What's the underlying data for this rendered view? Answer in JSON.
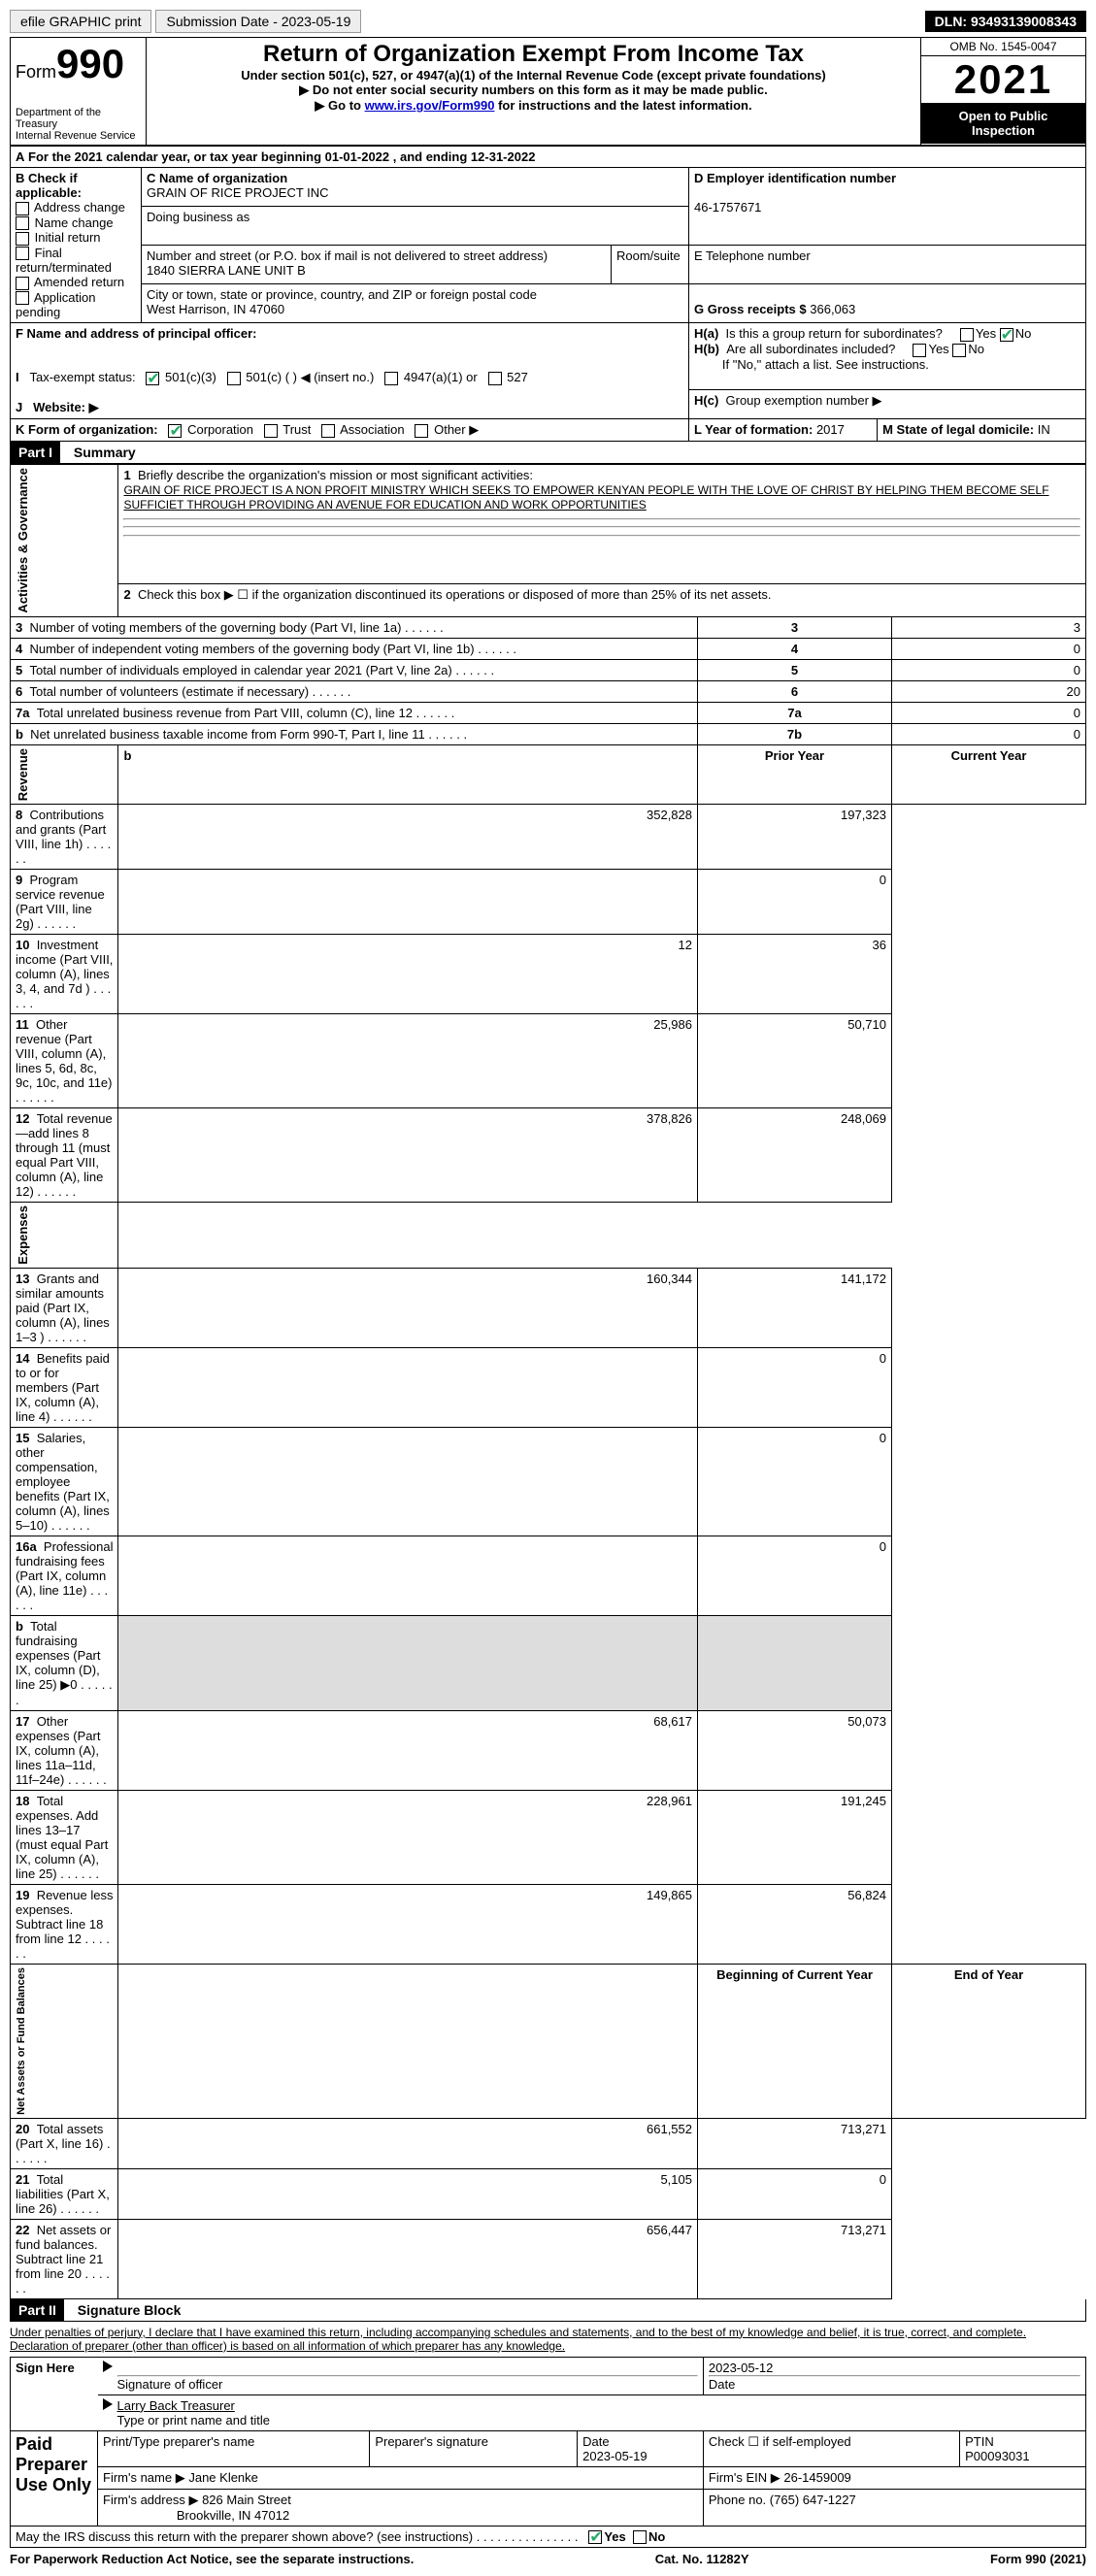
{
  "toolbar": {
    "efile": "efile GRAPHIC print",
    "submission": "Submission Date - 2023-05-19",
    "dln": "DLN: 93493139008343"
  },
  "header": {
    "form_word": "Form",
    "form_num": "990",
    "dept": "Department of the Treasury",
    "irs": "Internal Revenue Service",
    "title": "Return of Organization Exempt From Income Tax",
    "sub1": "Under section 501(c), 527, or 4947(a)(1) of the Internal Revenue Code (except private foundations)",
    "sub2": "▶ Do not enter social security numbers on this form as it may be made public.",
    "sub3_pre": "▶ Go to ",
    "sub3_link": "www.irs.gov/Form990",
    "sub3_post": " for instructions and the latest information.",
    "omb": "OMB No. 1545-0047",
    "year": "2021",
    "open": "Open to Public Inspection"
  },
  "A": {
    "text_pre": "For the 2021 calendar year, or tax year beginning ",
    "begin": "01-01-2022",
    "mid": " , and ending ",
    "end": "12-31-2022"
  },
  "B": {
    "label": "B Check if applicable:",
    "items": [
      "Address change",
      "Name change",
      "Initial return",
      "Final return/terminated",
      "Amended return",
      "Application pending"
    ]
  },
  "C": {
    "name_lbl": "C Name of organization",
    "name": "GRAIN OF RICE PROJECT INC",
    "dba_lbl": "Doing business as",
    "street_lbl": "Number and street (or P.O. box if mail is not delivered to street address)",
    "room_lbl": "Room/suite",
    "street": "1840 SIERRA LANE UNIT B",
    "city_lbl": "City or town, state or province, country, and ZIP or foreign postal code",
    "city": "West Harrison, IN  47060"
  },
  "D": {
    "lbl": "D Employer identification number",
    "val": "46-1757671"
  },
  "E": {
    "lbl": "E Telephone number"
  },
  "G": {
    "lbl": "G Gross receipts $",
    "val": "366,063"
  },
  "F": {
    "lbl": "F Name and address of principal officer:"
  },
  "H": {
    "a": "Is this a group return for subordinates?",
    "b": "Are all subordinates included?",
    "b_note": "If \"No,\" attach a list. See instructions.",
    "c": "Group exemption number ▶",
    "yes": "Yes",
    "no": "No"
  },
  "I": {
    "lbl": "Tax-exempt status:",
    "opts": [
      "501(c)(3)",
      "501(c) (  ) ◀ (insert no.)",
      "4947(a)(1) or",
      "527"
    ]
  },
  "J": {
    "lbl": "Website: ▶"
  },
  "K": {
    "lbl": "K Form of organization:",
    "opts": [
      "Corporation",
      "Trust",
      "Association",
      "Other ▶"
    ]
  },
  "L": {
    "lbl": "L Year of formation:",
    "val": "2017"
  },
  "M": {
    "lbl": "M State of legal domicile:",
    "val": "IN"
  },
  "part1": {
    "tag": "Part I",
    "title": "Summary"
  },
  "summary": {
    "sections": {
      "gov": "Activities & Governance",
      "rev": "Revenue",
      "exp": "Expenses",
      "net": "Net Assets or Fund Balances"
    },
    "line1_lbl": "Briefly describe the organization's mission or most significant activities:",
    "mission": "GRAIN OF RICE PROJECT IS A NON PROFIT MINISTRY WHICH SEEKS TO EMPOWER KENYAN PEOPLE WITH THE LOVE OF CHRIST BY HELPING THEM BECOME SELF SUFFICIET THROUGH PROVIDING AN AVENUE FOR EDUCATION AND WORK OPPORTUNITIES",
    "line2": "Check this box ▶ ☐ if the organization discontinued its operations or disposed of more than 25% of its net assets.",
    "rows_gov": [
      {
        "n": "3",
        "t": "Number of voting members of the governing body (Part VI, line 1a)",
        "box": "3",
        "v": "3"
      },
      {
        "n": "4",
        "t": "Number of independent voting members of the governing body (Part VI, line 1b)",
        "box": "4",
        "v": "0"
      },
      {
        "n": "5",
        "t": "Total number of individuals employed in calendar year 2021 (Part V, line 2a)",
        "box": "5",
        "v": "0"
      },
      {
        "n": "6",
        "t": "Total number of volunteers (estimate if necessary)",
        "box": "6",
        "v": "20"
      },
      {
        "n": "7a",
        "t": "Total unrelated business revenue from Part VIII, column (C), line 12",
        "box": "7a",
        "v": "0"
      },
      {
        "n": "b",
        "t": "Net unrelated business taxable income from Form 990-T, Part I, line 11",
        "box": "7b",
        "v": "0"
      }
    ],
    "col_prior": "Prior Year",
    "col_current": "Current Year",
    "rows_rev": [
      {
        "n": "8",
        "t": "Contributions and grants (Part VIII, line 1h)",
        "p": "352,828",
        "c": "197,323"
      },
      {
        "n": "9",
        "t": "Program service revenue (Part VIII, line 2g)",
        "p": "",
        "c": "0"
      },
      {
        "n": "10",
        "t": "Investment income (Part VIII, column (A), lines 3, 4, and 7d )",
        "p": "12",
        "c": "36"
      },
      {
        "n": "11",
        "t": "Other revenue (Part VIII, column (A), lines 5, 6d, 8c, 9c, 10c, and 11e)",
        "p": "25,986",
        "c": "50,710"
      },
      {
        "n": "12",
        "t": "Total revenue—add lines 8 through 11 (must equal Part VIII, column (A), line 12)",
        "p": "378,826",
        "c": "248,069"
      }
    ],
    "rows_exp": [
      {
        "n": "13",
        "t": "Grants and similar amounts paid (Part IX, column (A), lines 1–3 )",
        "p": "160,344",
        "c": "141,172"
      },
      {
        "n": "14",
        "t": "Benefits paid to or for members (Part IX, column (A), line 4)",
        "p": "",
        "c": "0"
      },
      {
        "n": "15",
        "t": "Salaries, other compensation, employee benefits (Part IX, column (A), lines 5–10)",
        "p": "",
        "c": "0"
      },
      {
        "n": "16a",
        "t": "Professional fundraising fees (Part IX, column (A), line 11e)",
        "p": "",
        "c": "0"
      },
      {
        "n": "b",
        "t": "Total fundraising expenses (Part IX, column (D), line 25) ▶0",
        "p": "SHADE",
        "c": "SHADE"
      },
      {
        "n": "17",
        "t": "Other expenses (Part IX, column (A), lines 11a–11d, 11f–24e)",
        "p": "68,617",
        "c": "50,073"
      },
      {
        "n": "18",
        "t": "Total expenses. Add lines 13–17 (must equal Part IX, column (A), line 25)",
        "p": "228,961",
        "c": "191,245"
      },
      {
        "n": "19",
        "t": "Revenue less expenses. Subtract line 18 from line 12",
        "p": "149,865",
        "c": "56,824"
      }
    ],
    "col_boy": "Beginning of Current Year",
    "col_eoy": "End of Year",
    "rows_net": [
      {
        "n": "20",
        "t": "Total assets (Part X, line 16)",
        "p": "661,552",
        "c": "713,271"
      },
      {
        "n": "21",
        "t": "Total liabilities (Part X, line 26)",
        "p": "5,105",
        "c": "0"
      },
      {
        "n": "22",
        "t": "Net assets or fund balances. Subtract line 21 from line 20",
        "p": "656,447",
        "c": "713,271"
      }
    ]
  },
  "part2": {
    "tag": "Part II",
    "title": "Signature Block"
  },
  "sig": {
    "decl": "Under penalties of perjury, I declare that I have examined this return, including accompanying schedules and statements, and to the best of my knowledge and belief, it is true, correct, and complete. Declaration of preparer (other than officer) is based on all information of which preparer has any knowledge.",
    "sign_here": "Sign Here",
    "sig_officer": "Signature of officer",
    "date": "2023-05-12",
    "date_lbl": "Date",
    "name": "Larry Back  Treasurer",
    "name_lbl": "Type or print name and title",
    "paid": "Paid Preparer Use Only",
    "prep_name_lbl": "Print/Type preparer's name",
    "prep_sig_lbl": "Preparer's signature",
    "prep_date_lbl": "Date",
    "prep_date": "2023-05-19",
    "check_lbl": "Check ☐ if self-employed",
    "ptin_lbl": "PTIN",
    "ptin": "P00093031",
    "firm_name_lbl": "Firm's name   ▶",
    "firm_name": "Jane Klenke",
    "firm_ein_lbl": "Firm's EIN ▶",
    "firm_ein": "26-1459009",
    "firm_addr_lbl": "Firm's address ▶",
    "firm_addr1": "826 Main Street",
    "firm_addr2": "Brookville, IN  47012",
    "phone_lbl": "Phone no.",
    "phone": "(765) 647-1227",
    "discuss": "May the IRS discuss this return with the preparer shown above? (see instructions)"
  },
  "footer": {
    "pra": "For Paperwork Reduction Act Notice, see the separate instructions.",
    "cat": "Cat. No. 11282Y",
    "form": "Form 990 (2021)"
  }
}
